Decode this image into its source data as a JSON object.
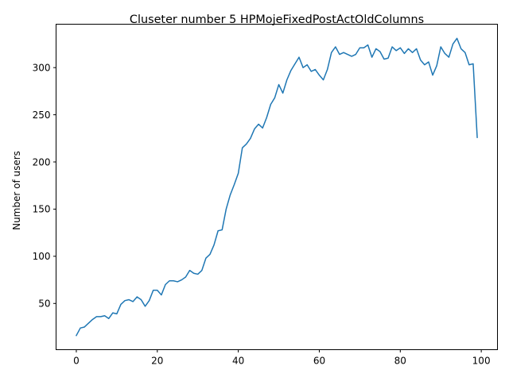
{
  "chart_data": {
    "type": "line",
    "title": "Cluseter number 5 HPMojeFixedPostActOldColumns",
    "xlabel": "",
    "ylabel": "Number of users",
    "xlim": [
      -5,
      104
    ],
    "ylim": [
      1,
      346
    ],
    "xticks": [
      0,
      20,
      40,
      60,
      80,
      100
    ],
    "yticks": [
      50,
      100,
      150,
      200,
      250,
      300
    ],
    "grid": false,
    "line_color": "#1f77b4",
    "series": [
      {
        "x": [
          0,
          1,
          2,
          3,
          4,
          5,
          6,
          7,
          8,
          9,
          10,
          11,
          12,
          13,
          14,
          15,
          16,
          17,
          18,
          19,
          20,
          21,
          22,
          23,
          24,
          25,
          26,
          27,
          28,
          29,
          30,
          31,
          32,
          33,
          34,
          35,
          36,
          37,
          38,
          39,
          40,
          41,
          42,
          43,
          44,
          45,
          46,
          47,
          48,
          49,
          50,
          51,
          52,
          53,
          54,
          55,
          56,
          57,
          58,
          59,
          60,
          61,
          62,
          63,
          64,
          65,
          66,
          67,
          68,
          69,
          70,
          71,
          72,
          73,
          74,
          75,
          76,
          77,
          78,
          79,
          80,
          81,
          82,
          83,
          84,
          85,
          86,
          87,
          88,
          89,
          90,
          91,
          92,
          93,
          94,
          95,
          96,
          97,
          98,
          99
        ],
        "y": [
          16,
          24,
          25,
          29,
          33,
          36,
          36,
          37,
          34,
          40,
          39,
          49,
          53,
          54,
          52,
          57,
          54,
          47,
          53,
          64,
          64,
          59,
          70,
          74,
          74,
          73,
          75,
          78,
          85,
          82,
          81,
          85,
          98,
          102,
          112,
          127,
          128,
          150,
          165,
          176,
          188,
          215,
          219,
          225,
          235,
          240,
          236,
          247,
          261,
          268,
          282,
          273,
          287,
          297,
          304,
          311,
          300,
          303,
          296,
          298,
          292,
          287,
          298,
          316,
          322,
          314,
          316,
          314,
          312,
          314,
          321,
          321,
          324,
          311,
          320,
          317,
          309,
          310,
          322,
          318,
          321,
          315,
          320,
          316,
          320,
          308,
          303,
          306,
          292,
          302,
          322,
          315,
          311,
          325,
          331,
          320,
          316,
          303,
          304,
          226
        ]
      }
    ]
  }
}
